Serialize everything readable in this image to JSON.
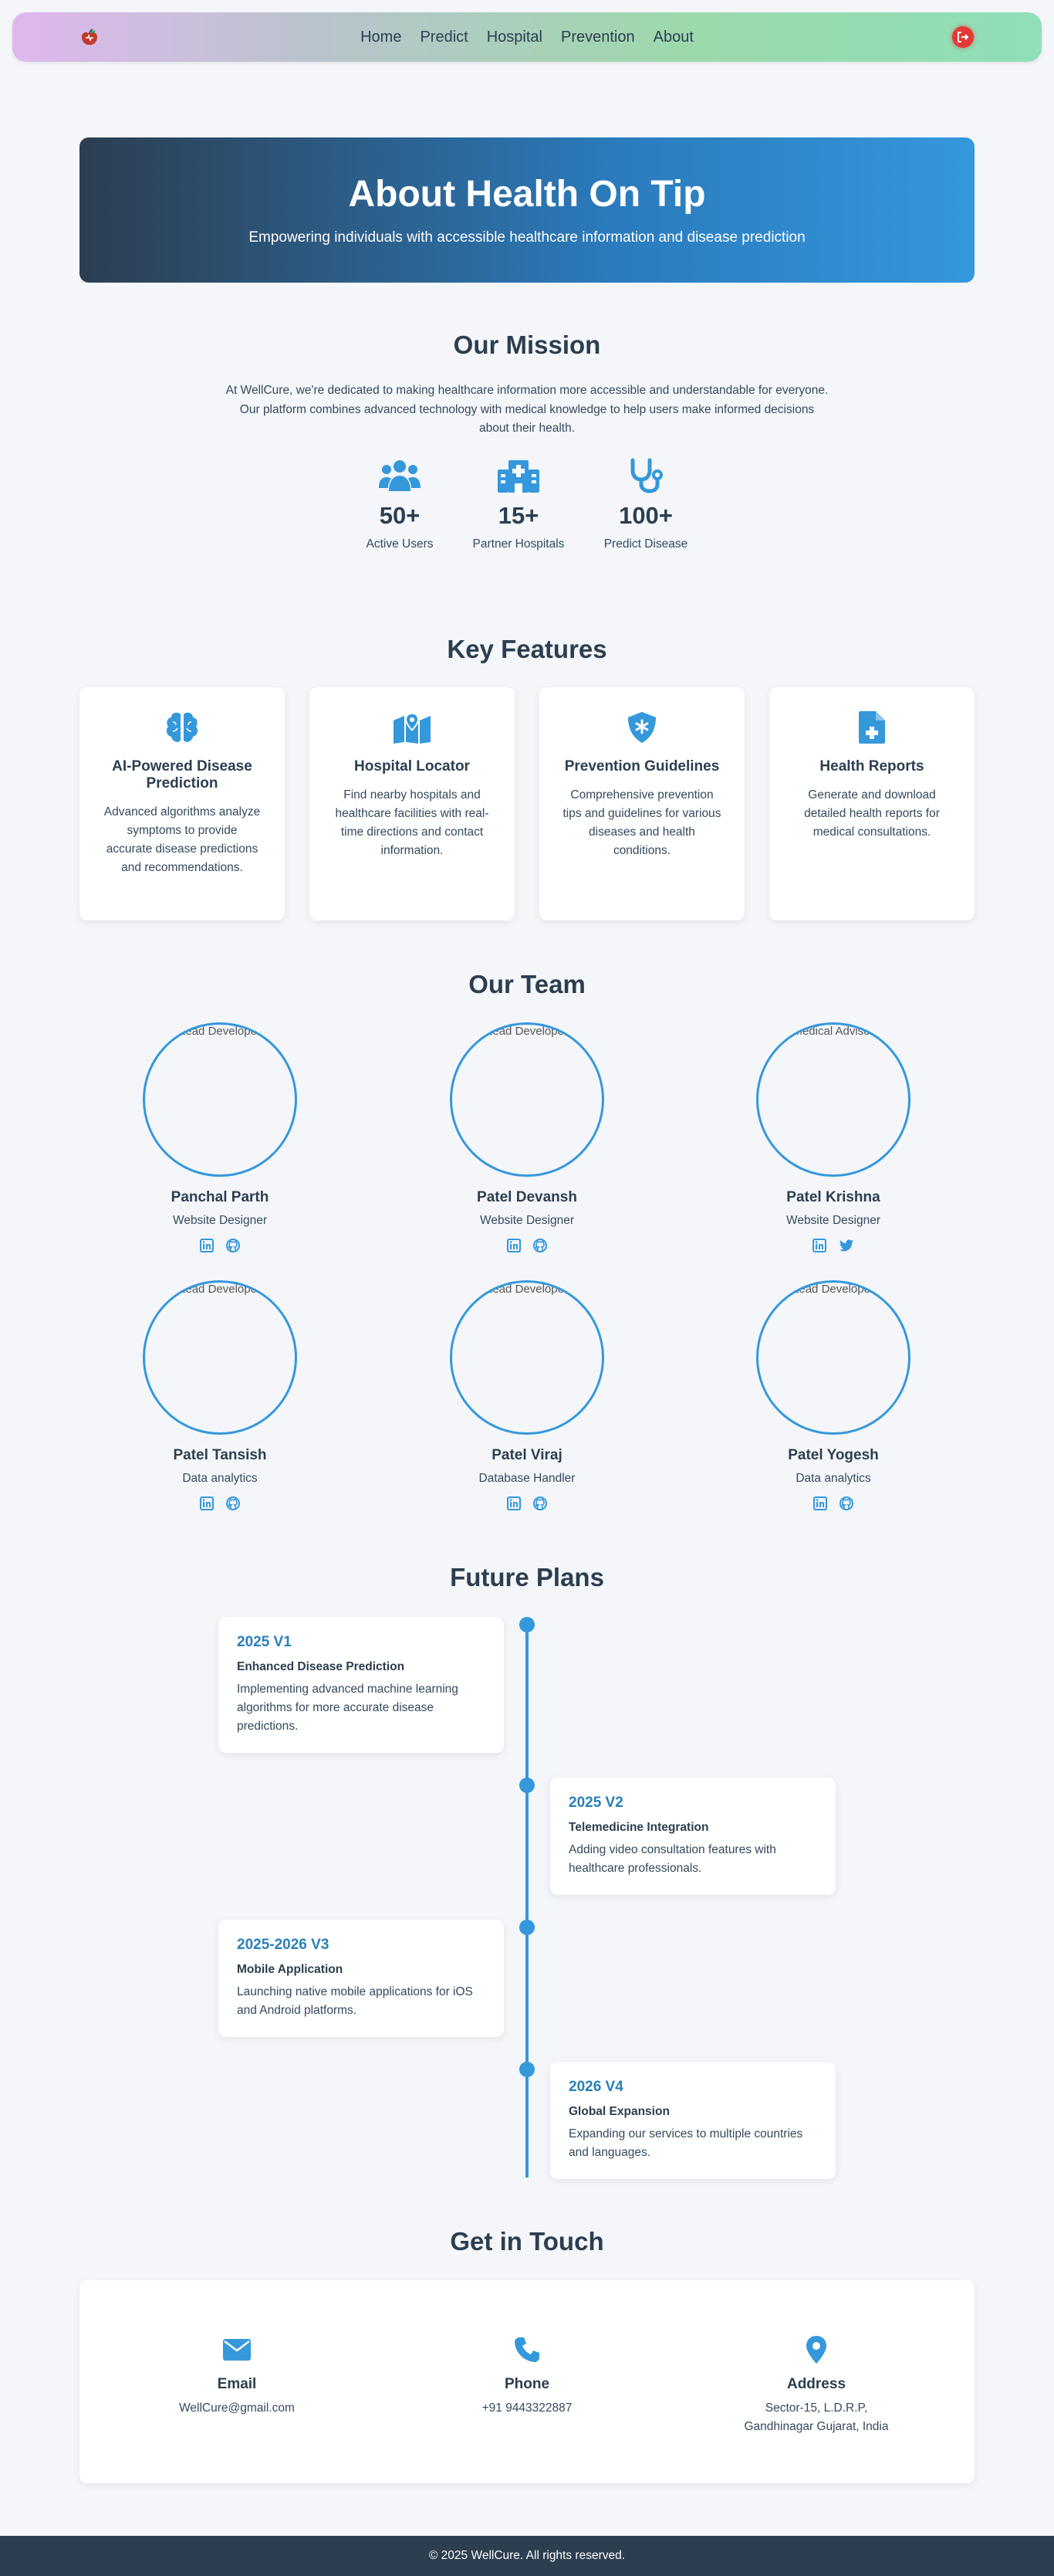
{
  "nav": {
    "links": [
      "Home",
      "Predict",
      "Hospital",
      "Prevention",
      "About"
    ]
  },
  "hero": {
    "title": "About Health On Tip",
    "subtitle": "Empowering individuals with accessible healthcare information and disease prediction"
  },
  "mission": {
    "title": "Our Mission",
    "text": "At WellCure, we're dedicated to making healthcare information more accessible and understandable for everyone. Our platform combines advanced technology with medical knowledge to help users make informed decisions about their health.",
    "stats": [
      {
        "icon": "users-icon",
        "number": "50+",
        "label": "Active Users"
      },
      {
        "icon": "hospital-icon",
        "number": "15+",
        "label": "Partner Hospitals"
      },
      {
        "icon": "stethoscope-icon",
        "number": "100+",
        "label": "Predict Disease"
      }
    ]
  },
  "features": {
    "title": "Key Features",
    "items": [
      {
        "icon": "brain-icon",
        "title": "AI-Powered Disease Prediction",
        "desc": "Advanced algorithms analyze symptoms to provide accurate disease predictions and recommendations."
      },
      {
        "icon": "map-marker-icon",
        "title": "Hospital Locator",
        "desc": "Find nearby hospitals and healthcare facilities with real-time directions and contact information."
      },
      {
        "icon": "shield-icon",
        "title": "Prevention Guidelines",
        "desc": "Comprehensive prevention tips and guidelines for various diseases and health conditions."
      },
      {
        "icon": "medical-file-icon",
        "title": "Health Reports",
        "desc": "Generate and download detailed health reports for medical consultations."
      }
    ]
  },
  "team": {
    "title": "Our Team",
    "members": [
      {
        "alt": "Lead Developer",
        "name": "Panchal Parth",
        "role": "Website Designer",
        "socials": [
          "linkedin",
          "github"
        ]
      },
      {
        "alt": "Lead Developer",
        "name": "Patel Devansh",
        "role": "Website Designer",
        "socials": [
          "linkedin",
          "github"
        ]
      },
      {
        "alt": "Medical Advisor",
        "name": "Patel Krishna",
        "role": "Website Designer",
        "socials": [
          "linkedin",
          "twitter"
        ]
      },
      {
        "alt": "Lead Developer",
        "name": "Patel Tansish",
        "role": "Data analytics",
        "socials": [
          "linkedin",
          "github"
        ]
      },
      {
        "alt": "Lead Developer",
        "name": "Patel Viraj",
        "role": "Database Handler",
        "socials": [
          "linkedin",
          "github"
        ]
      },
      {
        "alt": "Lead Developer",
        "name": "Patel Yogesh",
        "role": "Data analytics",
        "socials": [
          "linkedin",
          "github"
        ]
      }
    ]
  },
  "future": {
    "title": "Future Plans",
    "items": [
      {
        "year": "2025 V1",
        "title": "Enhanced Disease Prediction",
        "desc": "Implementing advanced machine learning algorithms for more accurate disease predictions."
      },
      {
        "year": "2025 V2",
        "title": "Telemedicine Integration",
        "desc": "Adding video consultation features with healthcare professionals."
      },
      {
        "year": "2025-2026 V3",
        "title": "Mobile Application",
        "desc": "Launching native mobile applications for iOS and Android platforms."
      },
      {
        "year": "2026 V4",
        "title": "Global Expansion",
        "desc": "Expanding our services to multiple countries and languages."
      }
    ]
  },
  "contact": {
    "title": "Get in Touch",
    "items": [
      {
        "icon": "envelope-icon",
        "label": "Email",
        "value": "WellCure@gmail.com"
      },
      {
        "icon": "phone-icon",
        "label": "Phone",
        "value": "+91 9443322887"
      },
      {
        "icon": "location-icon",
        "label": "Address",
        "value": "Sector-15, L.D.R.P, Gandhinagar Gujarat, India"
      }
    ]
  },
  "footer": {
    "text": "© 2025 WellCure. All rights reserved."
  },
  "colors": {
    "accent": "#3498db",
    "dark": "#2c3e50",
    "logout": "#e53935"
  }
}
